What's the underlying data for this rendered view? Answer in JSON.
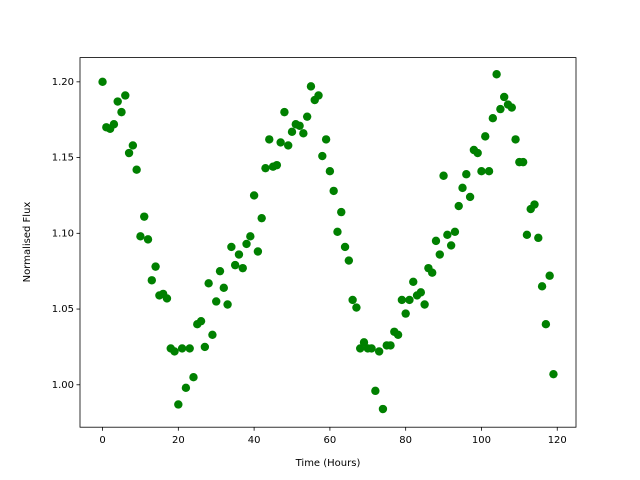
{
  "chart_data": {
    "type": "scatter",
    "xlabel": "Time (Hours)",
    "ylabel": "Normalised Flux",
    "color": "#008000",
    "xlim": [
      -5.95,
      124.95
    ],
    "ylim": [
      0.972,
      1.216
    ],
    "xticks": [
      0,
      20,
      40,
      60,
      80,
      100,
      120
    ],
    "yticks": [
      {
        "value": 1.0,
        "label": "1.00"
      },
      1.05,
      {
        "value": 1.1,
        "label": "1.10"
      },
      1.15,
      {
        "value": 1.2,
        "label": "1.20"
      }
    ],
    "x": [
      0,
      1,
      2,
      3,
      4,
      5,
      6,
      7,
      8,
      9,
      10,
      11,
      12,
      13,
      14,
      15,
      16,
      17,
      18,
      19,
      20,
      21,
      22,
      23,
      24,
      25,
      26,
      27,
      28,
      29,
      30,
      31,
      32,
      33,
      34,
      35,
      36,
      37,
      38,
      39,
      40,
      41,
      42,
      43,
      44,
      45,
      46,
      47,
      48,
      49,
      50,
      51,
      52,
      53,
      54,
      55,
      56,
      57,
      58,
      59,
      60,
      61,
      62,
      63,
      64,
      65,
      66,
      67,
      68,
      69,
      70,
      71,
      72,
      73,
      74,
      75,
      76,
      77,
      78,
      79,
      80,
      81,
      82,
      83,
      84,
      85,
      86,
      87,
      88,
      89,
      90,
      91,
      92,
      93,
      94,
      95,
      96,
      97,
      98,
      99,
      100,
      101,
      102,
      103,
      104,
      105,
      106,
      107,
      108,
      109,
      110,
      111,
      112,
      113,
      114,
      115,
      116,
      117,
      118,
      119
    ],
    "values": [
      1.2,
      1.17,
      1.169,
      1.172,
      1.187,
      1.18,
      1.191,
      1.153,
      1.158,
      1.142,
      1.098,
      1.111,
      1.096,
      1.069,
      1.078,
      1.059,
      1.06,
      1.057,
      1.024,
      1.022,
      0.987,
      1.024,
      0.998,
      1.024,
      1.005,
      1.04,
      1.042,
      1.025,
      1.067,
      1.033,
      1.055,
      1.075,
      1.064,
      1.053,
      1.091,
      1.079,
      1.086,
      1.077,
      1.093,
      1.098,
      1.125,
      1.088,
      1.11,
      1.143,
      1.162,
      1.144,
      1.145,
      1.16,
      1.18,
      1.158,
      1.167,
      1.172,
      1.171,
      1.166,
      1.177,
      1.197,
      1.188,
      1.191,
      1.151,
      1.162,
      1.141,
      1.128,
      1.101,
      1.114,
      1.091,
      1.082,
      1.056,
      1.051,
      1.024,
      1.028,
      1.024,
      1.024,
      0.996,
      1.022,
      0.984,
      1.026,
      1.026,
      1.035,
      1.033,
      1.056,
      1.047,
      1.056,
      1.068,
      1.059,
      1.061,
      1.053,
      1.077,
      1.074,
      1.095,
      1.086,
      1.138,
      1.099,
      1.092,
      1.101,
      1.118,
      1.13,
      1.139,
      1.124,
      1.155,
      1.153,
      1.141,
      1.164,
      1.141,
      1.176,
      1.205,
      1.182,
      1.19,
      1.185,
      1.183,
      1.162,
      1.147,
      1.147,
      1.099,
      1.116,
      1.119,
      1.097,
      1.065,
      1.04,
      1.072,
      1.007
    ]
  }
}
